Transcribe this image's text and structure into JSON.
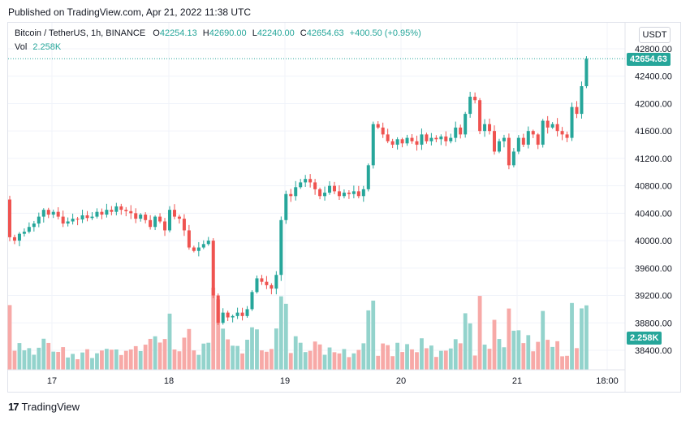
{
  "published": "Published on TradingView.com, Apr 21, 2022 11:38 UTC",
  "legend": {
    "symbol": "Bitcoin / TetherUS, 1h, BINANCE",
    "o_label": "O",
    "o": "42254.13",
    "h_label": "H",
    "h": "42690.00",
    "l_label": "L",
    "l": "42240.00",
    "c_label": "C",
    "c": "42654.63",
    "change": "+400.50 (+0.95%)",
    "vol_label": "Vol",
    "vol": "2.258K"
  },
  "currency": "USDT",
  "last_price_tag": "42654.63",
  "volume_tag": "2.258K",
  "footer": {
    "brand": "TradingView"
  },
  "colors": {
    "up": "#26a69a",
    "down": "#ef5350",
    "up_vol": "#93d3cc",
    "down_vol": "#f7a9a7",
    "grid": "#f0f3fa"
  },
  "chart_data": {
    "type": "candlestick",
    "ylim": [
      38200,
      42950
    ],
    "y_ticks": [
      "42800.00",
      "42400.00",
      "42000.00",
      "41600.00",
      "41200.00",
      "40800.00",
      "40400.00",
      "40000.00",
      "39600.00",
      "39200.00",
      "38800.00",
      "38400.00"
    ],
    "x_labels": [
      "17",
      "18",
      "19",
      "20",
      "21",
      "18:00"
    ],
    "close": [
      40050,
      40000,
      40100,
      40130,
      40200,
      40250,
      40350,
      40450,
      40380,
      40420,
      40350,
      40250,
      40280,
      40320,
      40310,
      40370,
      40330,
      40350,
      40420,
      40380,
      40450,
      40420,
      40500,
      40450,
      40430,
      40400,
      40320,
      40380,
      40300,
      40200,
      40350,
      40280,
      40150,
      40450,
      40350,
      40320,
      40150,
      39900,
      39850,
      39900,
      39950,
      40000,
      39200,
      38800,
      38950,
      38880,
      38900,
      38950,
      38900,
      39000,
      39250,
      39450,
      39400,
      39350,
      39300,
      39500,
      40300,
      40680,
      40650,
      40780,
      40850,
      40900,
      40850,
      40750,
      40650,
      40700,
      40800,
      40720,
      40650,
      40700,
      40680,
      40720,
      40650,
      40750,
      41100,
      41700,
      41650,
      41550,
      41450,
      41400,
      41480,
      41420,
      41500,
      41450,
      41400,
      41550,
      41450,
      41500,
      41480,
      41520,
      41450,
      41500,
      41650,
      41550,
      41850,
      42100,
      42050,
      41600,
      41700,
      41600,
      41300,
      41450,
      41500,
      41100,
      41300,
      41500,
      41400,
      41600,
      41550,
      41400,
      41750,
      41650,
      41700,
      41600,
      41550,
      41500,
      41950,
      41850,
      42254.13,
      42654.63
    ]
  }
}
